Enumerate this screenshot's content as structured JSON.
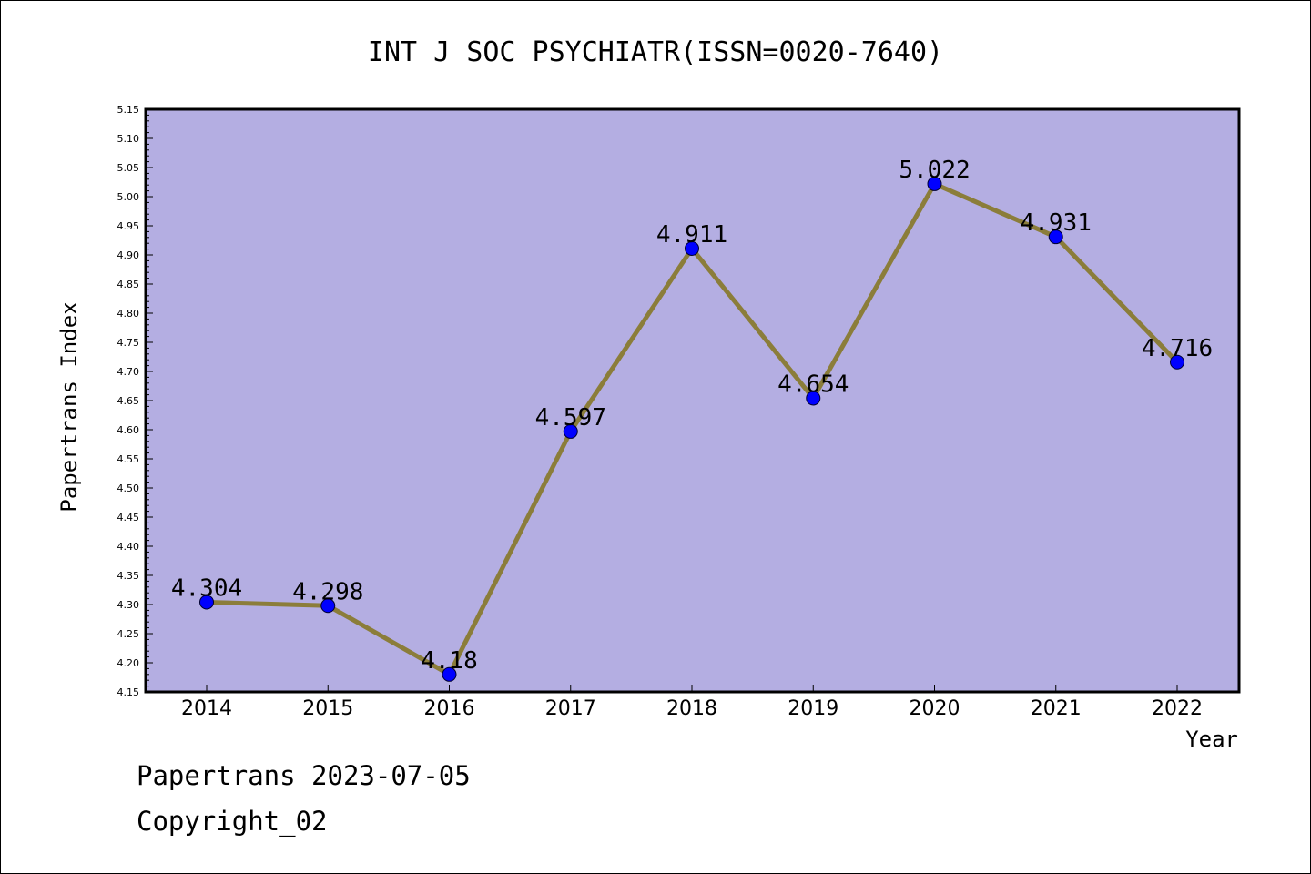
{
  "chart_data": {
    "type": "line",
    "title": "INT J SOC PSYCHIATR(ISSN=0020-7640)",
    "xlabel": "Year",
    "ylabel": "Papertrans Index",
    "categories": [
      "2014",
      "2015",
      "2016",
      "2017",
      "2018",
      "2019",
      "2020",
      "2021",
      "2022"
    ],
    "series": [
      {
        "values": [
          4.304,
          4.298,
          4.18,
          4.597,
          4.911,
          4.654,
          5.022,
          4.931,
          4.716
        ],
        "data_labels": [
          "4.304",
          "4.298",
          "4.18",
          "4.597",
          "4.911",
          "4.654",
          "5.022",
          "4.931",
          "4.716"
        ]
      }
    ],
    "ylim": [
      4.15,
      5.15
    ],
    "yticks": [
      "4.15",
      "4.20",
      "4.25",
      "4.30",
      "4.35",
      "4.40",
      "4.45",
      "4.50",
      "4.55",
      "4.60",
      "4.65",
      "4.70",
      "4.75",
      "4.80",
      "4.85",
      "4.90",
      "4.95",
      "5.00",
      "5.05",
      "5.10",
      "5.15"
    ],
    "grid": false,
    "colors": {
      "plot_background": "#b4aee2",
      "line": "#8b7d3a",
      "marker": "#0000ff"
    }
  },
  "footer": {
    "line1": "Papertrans 2023-07-05",
    "line2": "Copyright_02"
  }
}
